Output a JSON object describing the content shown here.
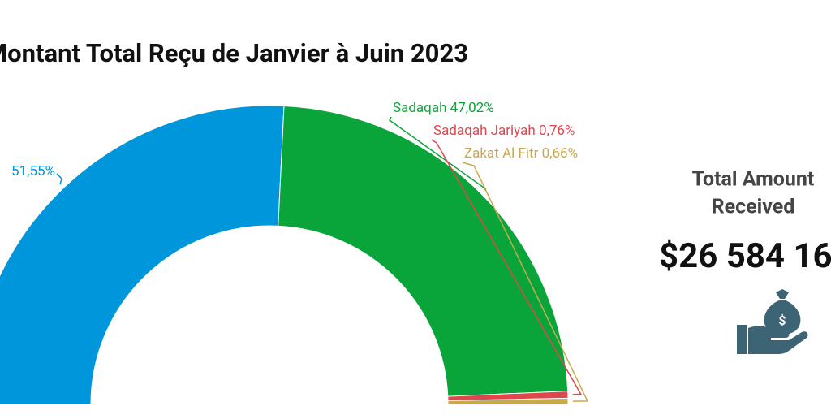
{
  "chart_data": {
    "type": "half-donut",
    "title": "Montant Total Reçu de Janvier à Juin 2023",
    "categories": [
      null,
      "Sadaqah",
      "Sadaqah Jariyah",
      "Zakat Al Fitr"
    ],
    "values": [
      51.55,
      47.02,
      0.76,
      0.66
    ],
    "value_labels": [
      "51,55%",
      "47,02%",
      "0,76%",
      "0,66%"
    ],
    "colors": [
      "#0096db",
      "#0aa53a",
      "#e0474c",
      "#c8a94e"
    ]
  },
  "summary": {
    "label_line1": "Total Amount",
    "label_line2": "Received",
    "amount": "$26 584 16"
  }
}
